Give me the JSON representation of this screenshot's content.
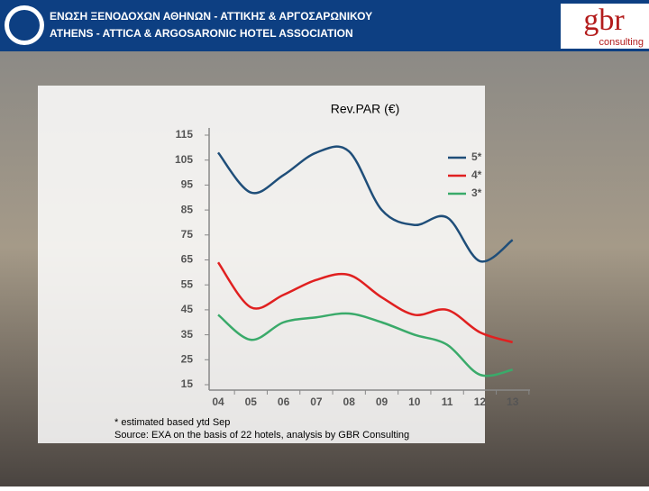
{
  "header": {
    "title_greek": "ΕΝΩΣΗ ΞΕΝΟΔΟΧΩΝ ΑΘΗΝΩΝ - ΑΤΤΙΚΗΣ & ΑΡΓΟΣΑΡΩΝΙΚΟΥ",
    "title_english": "ATHENS - ATTICA & ARGOSARONIC HOTEL ASSOCIATION",
    "logo": "gbr",
    "logo_sub": "consulting"
  },
  "chart_data": {
    "type": "line",
    "title": "Rev.PAR (€)",
    "categories": [
      "04",
      "05",
      "06",
      "07",
      "08",
      "09",
      "10",
      "11",
      "12",
      "13"
    ],
    "series": [
      {
        "name": "5*",
        "color": "#1f4e79",
        "values": [
          108,
          92,
          99,
          108,
          108.5,
          85,
          79,
          82,
          64.5,
          73
        ]
      },
      {
        "name": "4*",
        "color": "#e02020",
        "values": [
          64,
          46,
          51,
          57,
          59,
          50,
          43,
          45,
          36,
          32
        ]
      },
      {
        "name": "3*",
        "color": "#3aaa6a",
        "values": [
          43,
          33,
          40,
          42,
          43.5,
          40,
          35,
          31,
          19,
          21
        ]
      }
    ],
    "ylim": [
      15,
      115
    ],
    "yticks": [
      15,
      25,
      35,
      45,
      55,
      65,
      75,
      85,
      95,
      105,
      115
    ],
    "grid": false,
    "legend": "top-right",
    "notes": [
      "* estimated based ytd Sep",
      "Source: EXA on the basis of 22 hotels, analysis by GBR Consulting"
    ]
  }
}
